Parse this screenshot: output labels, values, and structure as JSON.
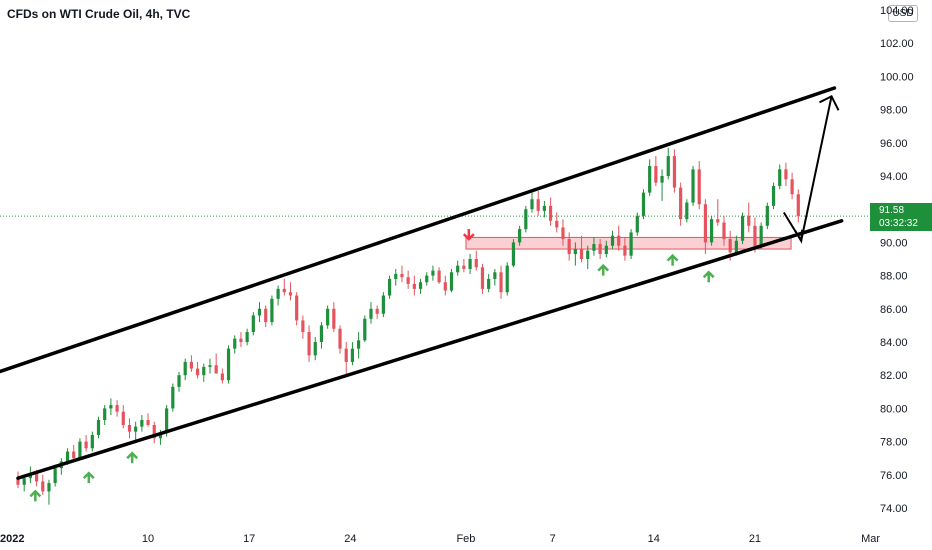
{
  "header": {
    "title": "CFDs on WTI Crude Oil, 4h, TVC",
    "currency": "USD"
  },
  "price_label": {
    "price": "91.58",
    "countdown": "03:32:32"
  },
  "colors": {
    "up": "#1e8f3a",
    "down": "#e5545e",
    "zone_fill": "#f8c9cc",
    "zone_border": "#e5545e",
    "line": "#000000",
    "marker_up": "#4caf50",
    "marker_down": "#f23645"
  },
  "chart_data": {
    "type": "candlestick",
    "title": "CFDs on WTI Crude Oil, 4h, TVC",
    "currency": "USD",
    "ylim": [
      73,
      104
    ],
    "yticks": [
      "74.00",
      "76.00",
      "78.00",
      "80.00",
      "82.00",
      "84.00",
      "86.00",
      "88.00",
      "90.00",
      "92.00",
      "94.00",
      "96.00",
      "98.00",
      "100.00",
      "102.00",
      "104.00"
    ],
    "xticks": [
      {
        "label": "2022",
        "day": 0
      },
      {
        "label": "10",
        "day": 9
      },
      {
        "label": "17",
        "day": 16
      },
      {
        "label": "24",
        "day": 23
      },
      {
        "label": "Feb",
        "day": 31
      },
      {
        "label": "7",
        "day": 37
      },
      {
        "label": "14",
        "day": 44
      },
      {
        "label": "21",
        "day": 51
      },
      {
        "label": "Mar",
        "day": 59
      }
    ],
    "current_price": 91.58,
    "candles": [
      [
        75.8,
        76.2,
        75.2,
        75.4
      ],
      [
        75.4,
        76.0,
        75.0,
        75.8
      ],
      [
        75.8,
        76.5,
        75.5,
        76.1
      ],
      [
        76.1,
        76.3,
        75.3,
        75.6
      ],
      [
        75.6,
        76.0,
        74.8,
        75.0
      ],
      [
        75.0,
        75.7,
        74.2,
        75.5
      ],
      [
        75.5,
        76.6,
        75.3,
        76.4
      ],
      [
        76.4,
        77.0,
        76.0,
        76.8
      ],
      [
        76.8,
        77.6,
        76.6,
        77.4
      ],
      [
        77.4,
        77.8,
        76.8,
        77.0
      ],
      [
        77.0,
        78.2,
        76.9,
        78.0
      ],
      [
        78.0,
        78.4,
        77.4,
        77.6
      ],
      [
        77.6,
        78.6,
        77.4,
        78.4
      ],
      [
        78.4,
        79.5,
        78.2,
        79.3
      ],
      [
        79.3,
        80.2,
        79.0,
        80.0
      ],
      [
        80.0,
        80.6,
        79.6,
        80.2
      ],
      [
        80.2,
        80.5,
        79.5,
        79.8
      ],
      [
        79.8,
        80.2,
        78.8,
        79.0
      ],
      [
        79.0,
        79.4,
        78.2,
        78.6
      ],
      [
        78.6,
        79.2,
        78.0,
        78.9
      ],
      [
        78.9,
        79.6,
        78.6,
        79.3
      ],
      [
        79.3,
        79.7,
        78.9,
        79.0
      ],
      [
        79.0,
        79.2,
        77.9,
        78.2
      ],
      [
        78.2,
        78.7,
        77.8,
        78.5
      ],
      [
        78.5,
        80.2,
        78.3,
        80.0
      ],
      [
        80.0,
        81.5,
        79.8,
        81.3
      ],
      [
        81.3,
        82.2,
        81.0,
        82.0
      ],
      [
        82.0,
        83.0,
        81.7,
        82.8
      ],
      [
        82.8,
        83.2,
        82.2,
        82.4
      ],
      [
        82.4,
        82.8,
        81.8,
        82.0
      ],
      [
        82.0,
        82.7,
        81.6,
        82.5
      ],
      [
        82.5,
        83.0,
        82.1,
        82.6
      ],
      [
        82.6,
        83.3,
        82.2,
        82.1
      ],
      [
        82.1,
        82.4,
        81.5,
        81.7
      ],
      [
        81.7,
        83.8,
        81.5,
        83.6
      ],
      [
        83.6,
        84.4,
        83.3,
        84.2
      ],
      [
        84.2,
        84.6,
        83.7,
        84.0
      ],
      [
        84.0,
        84.8,
        83.8,
        84.6
      ],
      [
        84.6,
        85.8,
        84.4,
        85.6
      ],
      [
        85.6,
        86.4,
        85.2,
        86.0
      ],
      [
        86.0,
        86.2,
        84.9,
        85.2
      ],
      [
        85.2,
        86.8,
        85.0,
        86.6
      ],
      [
        86.6,
        87.4,
        86.2,
        87.2
      ],
      [
        87.2,
        87.8,
        86.8,
        87.0
      ],
      [
        87.0,
        87.6,
        86.5,
        86.8
      ],
      [
        86.8,
        87.0,
        85.0,
        85.3
      ],
      [
        85.3,
        85.6,
        84.2,
        84.6
      ],
      [
        84.6,
        85.0,
        82.8,
        83.2
      ],
      [
        83.2,
        84.3,
        82.9,
        84.0
      ],
      [
        84.0,
        85.2,
        83.6,
        85.0
      ],
      [
        85.0,
        86.2,
        84.8,
        86.0
      ],
      [
        86.0,
        86.4,
        84.6,
        84.8
      ],
      [
        84.8,
        85.0,
        83.3,
        83.6
      ],
      [
        83.6,
        84.0,
        81.9,
        82.8
      ],
      [
        82.8,
        84.0,
        82.6,
        83.6
      ],
      [
        83.6,
        84.6,
        83.0,
        84.1
      ],
      [
        84.1,
        85.6,
        84.0,
        85.4
      ],
      [
        85.4,
        86.4,
        85.1,
        86.0
      ],
      [
        86.0,
        86.2,
        85.4,
        85.7
      ],
      [
        85.7,
        87.0,
        85.5,
        86.8
      ],
      [
        86.8,
        88.0,
        86.6,
        87.8
      ],
      [
        87.8,
        88.4,
        87.4,
        88.1
      ],
      [
        88.1,
        88.6,
        87.6,
        87.9
      ],
      [
        87.9,
        88.3,
        87.2,
        87.5
      ],
      [
        87.5,
        88.0,
        86.8,
        87.2
      ],
      [
        87.2,
        87.8,
        86.9,
        87.6
      ],
      [
        87.6,
        88.2,
        87.4,
        88.0
      ],
      [
        88.0,
        88.6,
        87.7,
        88.3
      ],
      [
        88.3,
        88.5,
        87.5,
        87.6
      ],
      [
        87.6,
        88.0,
        86.8,
        87.1
      ],
      [
        87.1,
        88.4,
        87.0,
        88.2
      ],
      [
        88.2,
        88.9,
        88.0,
        88.6
      ],
      [
        88.6,
        89.0,
        88.2,
        88.4
      ],
      [
        88.4,
        89.3,
        88.1,
        89.0
      ],
      [
        89.0,
        89.5,
        88.3,
        88.5
      ],
      [
        88.5,
        88.7,
        86.9,
        87.2
      ],
      [
        87.2,
        88.1,
        87.0,
        87.8
      ],
      [
        87.8,
        88.4,
        87.4,
        88.2
      ],
      [
        88.2,
        88.6,
        86.6,
        87.0
      ],
      [
        87.0,
        88.8,
        86.8,
        88.6
      ],
      [
        88.6,
        90.2,
        88.5,
        90.0
      ],
      [
        90.0,
        91.0,
        89.8,
        90.8
      ],
      [
        90.8,
        92.2,
        90.6,
        92.0
      ],
      [
        92.0,
        93.0,
        91.8,
        92.6
      ],
      [
        92.6,
        93.1,
        91.6,
        91.9
      ],
      [
        91.9,
        92.5,
        91.5,
        92.2
      ],
      [
        92.2,
        92.7,
        91.0,
        91.3
      ],
      [
        91.3,
        91.8,
        90.6,
        90.9
      ],
      [
        90.9,
        91.4,
        89.8,
        90.2
      ],
      [
        90.2,
        90.6,
        88.9,
        89.3
      ],
      [
        89.3,
        90.0,
        88.6,
        89.6
      ],
      [
        89.6,
        90.4,
        88.8,
        89.0
      ],
      [
        89.0,
        89.8,
        88.4,
        89.5
      ],
      [
        89.5,
        90.3,
        89.2,
        89.9
      ],
      [
        89.9,
        90.2,
        89.0,
        89.3
      ],
      [
        89.3,
        90.1,
        89.1,
        89.8
      ],
      [
        89.8,
        90.7,
        89.6,
        90.4
      ],
      [
        90.4,
        91.0,
        89.5,
        89.8
      ],
      [
        89.8,
        90.3,
        88.9,
        89.2
      ],
      [
        89.2,
        90.8,
        89.0,
        90.6
      ],
      [
        90.6,
        91.8,
        90.4,
        91.6
      ],
      [
        91.6,
        93.2,
        91.4,
        93.0
      ],
      [
        93.0,
        95.0,
        92.8,
        94.6
      ],
      [
        94.6,
        95.2,
        93.4,
        93.6
      ],
      [
        93.6,
        94.4,
        92.5,
        94.0
      ],
      [
        94.0,
        95.7,
        93.8,
        95.2
      ],
      [
        95.2,
        95.6,
        93.0,
        93.3
      ],
      [
        93.3,
        93.6,
        91.0,
        91.4
      ],
      [
        91.4,
        92.6,
        91.2,
        92.4
      ],
      [
        92.4,
        94.6,
        92.2,
        94.4
      ],
      [
        94.4,
        94.9,
        92.0,
        92.3
      ],
      [
        92.3,
        92.6,
        89.3,
        90.0
      ],
      [
        90.0,
        91.6,
        89.8,
        91.4
      ],
      [
        91.4,
        92.6,
        91.0,
        91.2
      ],
      [
        91.2,
        91.6,
        89.8,
        90.2
      ],
      [
        90.2,
        90.7,
        88.9,
        89.4
      ],
      [
        89.4,
        90.4,
        89.2,
        90.1
      ],
      [
        90.1,
        91.8,
        89.9,
        91.6
      ],
      [
        91.6,
        92.4,
        90.6,
        91.0
      ],
      [
        91.0,
        91.5,
        89.4,
        89.8
      ],
      [
        89.8,
        91.2,
        89.6,
        91.0
      ],
      [
        91.0,
        92.4,
        90.8,
        92.2
      ],
      [
        92.2,
        93.6,
        92.0,
        93.4
      ],
      [
        93.4,
        94.7,
        93.2,
        94.4
      ],
      [
        94.4,
        94.8,
        93.4,
        93.8
      ],
      [
        93.8,
        94.2,
        92.6,
        92.9
      ],
      [
        92.9,
        93.2,
        91.2,
        91.58
      ]
    ],
    "channel": {
      "upper": [
        [
          -2,
          82.0
        ],
        [
          56.5,
          99.3
        ]
      ],
      "lower": [
        [
          0,
          75.8
        ],
        [
          57,
          91.3
        ]
      ]
    },
    "support_zone": {
      "day_start": 31,
      "day_end": 53.5,
      "low": 89.6,
      "high": 90.3
    },
    "projection": [
      [
        53,
        91.8
      ],
      [
        54.2,
        90.1
      ],
      [
        56.3,
        98.8
      ]
    ],
    "markers": [
      {
        "type": "up",
        "day": 1.2,
        "price": 74.7
      },
      {
        "type": "up",
        "day": 4.9,
        "price": 75.8
      },
      {
        "type": "up",
        "day": 7.9,
        "price": 77.0
      },
      {
        "type": "down",
        "day": 31.2,
        "price": 90.5
      },
      {
        "type": "up",
        "day": 40.5,
        "price": 88.3
      },
      {
        "type": "up",
        "day": 45.3,
        "price": 88.9
      },
      {
        "type": "up",
        "day": 47.8,
        "price": 87.9
      }
    ]
  }
}
